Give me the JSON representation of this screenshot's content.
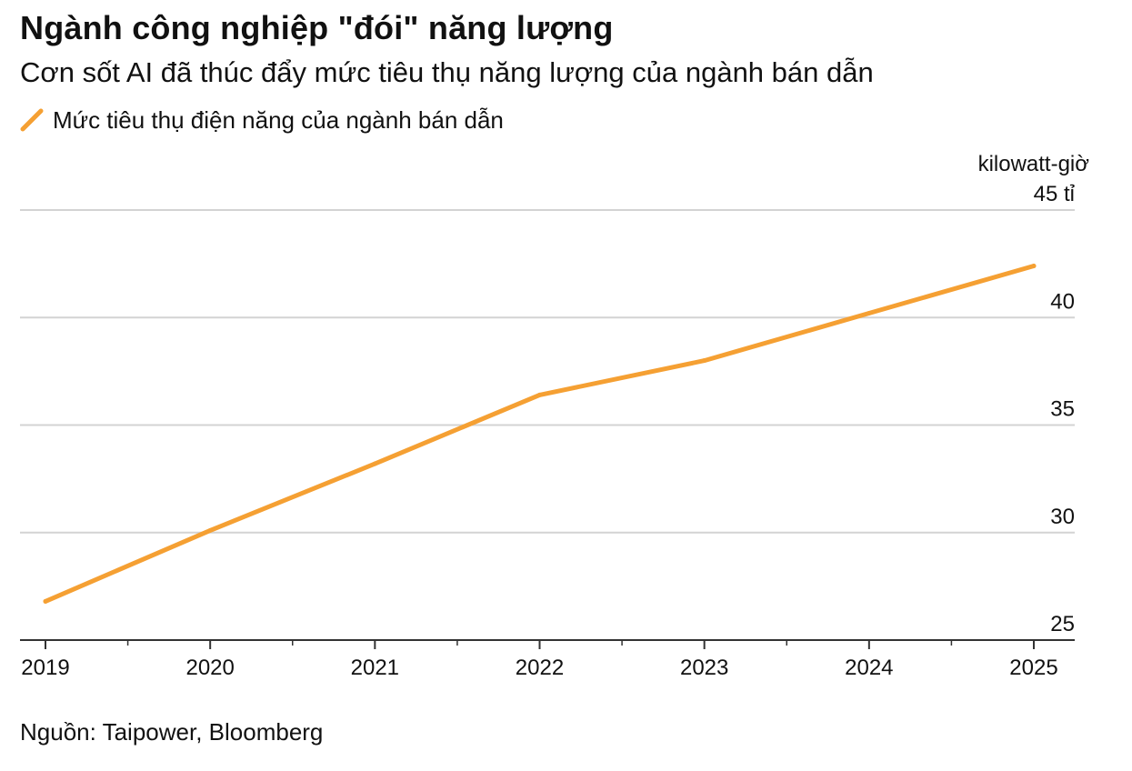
{
  "header": {
    "title": "Ngành công nghiệp \"đói\" năng lượng",
    "subtitle": "Cơn sốt AI đã thúc đẩy mức tiêu thụ năng lượng của ngành bán dẫn"
  },
  "footer": {
    "source": "Nguồn: Taipower, Bloomberg"
  },
  "colors": {
    "series": "#F5A033",
    "grid": "#D3D3D3",
    "axis": "#333333",
    "text": "#111111"
  },
  "chart_data": {
    "type": "line",
    "title": "Ngành công nghiệp \"đói\" năng lượng",
    "subtitle": "Cơn sốt AI đã thúc đẩy mức tiêu thụ năng lượng của ngành bán dẫn",
    "ylabel": "kilowatt-giờ",
    "ylim": [
      25,
      45
    ],
    "xlim": [
      2019,
      2025
    ],
    "y_ticks": [
      {
        "value": 45,
        "label": "45 tỉ"
      },
      {
        "value": 40,
        "label": "40"
      },
      {
        "value": 35,
        "label": "35"
      },
      {
        "value": 30,
        "label": "30"
      },
      {
        "value": 25,
        "label": "25"
      }
    ],
    "x_ticks": [
      {
        "value": 2019,
        "label": "2019"
      },
      {
        "value": 2020,
        "label": "2020"
      },
      {
        "value": 2021,
        "label": "2021"
      },
      {
        "value": 2022,
        "label": "2022"
      },
      {
        "value": 2023,
        "label": "2023"
      },
      {
        "value": 2024,
        "label": "2024"
      },
      {
        "value": 2025,
        "label": "2025"
      }
    ],
    "grid": true,
    "legend_position": "top-left",
    "series": [
      {
        "name": "Mức tiêu thụ điện năng của ngành bán dẫn",
        "color": "#F5A033",
        "points": [
          {
            "x": 2019,
            "y": 26.8
          },
          {
            "x": 2020,
            "y": 30.1
          },
          {
            "x": 2021,
            "y": 33.2
          },
          {
            "x": 2022,
            "y": 36.4
          },
          {
            "x": 2023,
            "y": 38.0
          },
          {
            "x": 2024,
            "y": 40.2
          },
          {
            "x": 2025,
            "y": 42.4
          }
        ]
      }
    ]
  }
}
